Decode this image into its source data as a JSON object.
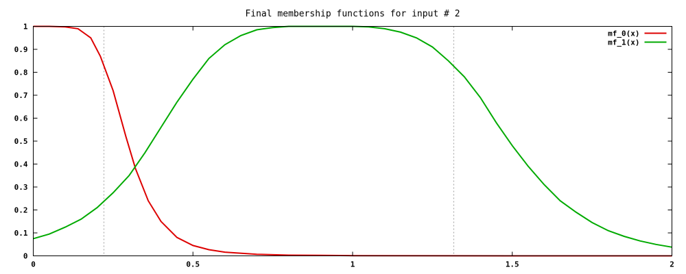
{
  "chart_data": {
    "type": "line",
    "title": "Final membership functions for input # 2",
    "xlim": [
      0,
      2
    ],
    "ylim": [
      0,
      1
    ],
    "x_ticks": [
      0,
      0.5,
      1,
      1.5,
      2
    ],
    "x_tick_labels": [
      "0",
      "0.5",
      "1",
      "1.5",
      "2"
    ],
    "y_ticks": [
      0,
      0.1,
      0.2,
      0.3,
      0.4,
      0.5,
      0.6,
      0.7,
      0.8,
      0.9,
      1
    ],
    "y_tick_labels": [
      "0",
      "0.1",
      "0.2",
      "0.3",
      "0.4",
      "0.5",
      "0.6",
      "0.7",
      "0.8",
      "0.9",
      "1"
    ],
    "grid": false,
    "vertical_reference_lines_x": [
      0.22,
      1.315
    ],
    "legend_position": "top-right",
    "series": [
      {
        "name": "mf_0(x)",
        "color": "#dd0000",
        "x": [
          0,
          0.05,
          0.1,
          0.14,
          0.18,
          0.21,
          0.25,
          0.29,
          0.32,
          0.36,
          0.4,
          0.45,
          0.5,
          0.55,
          0.6,
          0.7,
          0.8,
          0.9,
          1.0,
          1.5,
          2.0
        ],
        "y": [
          1.0,
          1.0,
          0.998,
          0.99,
          0.95,
          0.87,
          0.72,
          0.52,
          0.38,
          0.24,
          0.15,
          0.08,
          0.045,
          0.027,
          0.016,
          0.007,
          0.003,
          0.002,
          0.001,
          0.0,
          0.0
        ]
      },
      {
        "name": "mf_1(x)",
        "color": "#00aa00",
        "x": [
          0,
          0.05,
          0.1,
          0.15,
          0.2,
          0.25,
          0.3,
          0.35,
          0.4,
          0.45,
          0.5,
          0.55,
          0.6,
          0.65,
          0.7,
          0.75,
          0.8,
          0.9,
          1.0,
          1.05,
          1.1,
          1.15,
          1.2,
          1.25,
          1.3,
          1.35,
          1.4,
          1.45,
          1.5,
          1.55,
          1.6,
          1.65,
          1.7,
          1.75,
          1.8,
          1.85,
          1.9,
          1.95,
          2.0
        ],
        "y": [
          0.075,
          0.095,
          0.125,
          0.16,
          0.21,
          0.275,
          0.35,
          0.45,
          0.56,
          0.67,
          0.77,
          0.86,
          0.92,
          0.96,
          0.985,
          0.995,
          1.0,
          1.0,
          1.0,
          0.998,
          0.99,
          0.975,
          0.95,
          0.91,
          0.85,
          0.78,
          0.69,
          0.58,
          0.48,
          0.39,
          0.31,
          0.24,
          0.19,
          0.145,
          0.11,
          0.085,
          0.065,
          0.05,
          0.038
        ]
      }
    ]
  }
}
